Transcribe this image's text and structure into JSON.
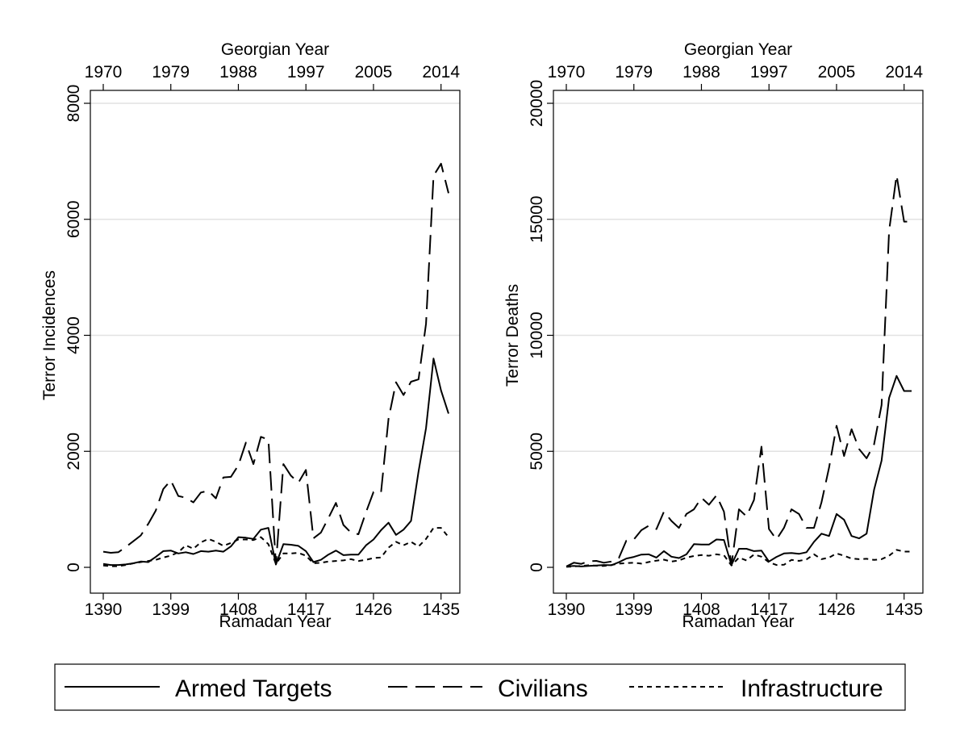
{
  "chart_data": [
    {
      "type": "line",
      "ylabel": "Terror Incidences",
      "xlabel": "Ramadan Year",
      "top_xlabel": "Georgian Year",
      "xlim": [
        1390,
        1436
      ],
      "ylim": [
        0,
        8000
      ],
      "x_ticks": [
        1390,
        1399,
        1408,
        1417,
        1426,
        1435
      ],
      "top_ticks": [
        {
          "at": 1390,
          "label": "1970"
        },
        {
          "at": 1399,
          "label": "1979"
        },
        {
          "at": 1408,
          "label": "1988"
        },
        {
          "at": 1417,
          "label": "1997"
        },
        {
          "at": 1426,
          "label": "2005"
        },
        {
          "at": 1435,
          "label": "2014"
        }
      ],
      "y_ticks": [
        0,
        2000,
        4000,
        6000,
        8000
      ],
      "gridlines": true,
      "series": [
        {
          "name": "Armed Targets",
          "style": "solid",
          "x": [
            1390,
            1391,
            1392,
            1393,
            1394,
            1395,
            1396,
            1397,
            1398,
            1399,
            1400,
            1401,
            1402,
            1403,
            1404,
            1405,
            1406,
            1407,
            1408,
            1409,
            1410,
            1411,
            1412,
            1413,
            1414,
            1415,
            1416,
            1417,
            1418,
            1419,
            1420,
            1421,
            1422,
            1423,
            1424,
            1425,
            1426,
            1427,
            1428,
            1429,
            1430,
            1431,
            1432,
            1433,
            1434,
            1435,
            1436
          ],
          "values": [
            60,
            40,
            40,
            50,
            70,
            100,
            90,
            180,
            280,
            290,
            240,
            260,
            230,
            280,
            270,
            290,
            270,
            360,
            520,
            510,
            490,
            650,
            680,
            50,
            400,
            390,
            370,
            280,
            90,
            130,
            220,
            290,
            210,
            220,
            220,
            380,
            480,
            640,
            770,
            560,
            650,
            800,
            1650,
            2400,
            3600,
            3050,
            2650
          ]
        },
        {
          "name": "Civilians",
          "style": "dashed",
          "x": [
            1390,
            1391,
            1392,
            1393,
            1394,
            1395,
            1396,
            1397,
            1398,
            1399,
            1400,
            1401,
            1402,
            1403,
            1404,
            1405,
            1406,
            1407,
            1408,
            1409,
            1410,
            1411,
            1412,
            1413,
            1414,
            1415,
            1416,
            1417,
            1418,
            1419,
            1420,
            1421,
            1422,
            1423,
            1424,
            1425,
            1426,
            1427,
            1428,
            1429,
            1430,
            1431,
            1432,
            1433,
            1434,
            1435,
            1436
          ],
          "values": [
            270,
            250,
            260,
            350,
            450,
            550,
            750,
            980,
            1350,
            1500,
            1230,
            1200,
            1120,
            1290,
            1320,
            1190,
            1550,
            1560,
            1760,
            2150,
            1780,
            2250,
            2200,
            50,
            1780,
            1580,
            1460,
            1680,
            500,
            600,
            850,
            1110,
            730,
            600,
            570,
            950,
            1300,
            1290,
            2560,
            3190,
            2970,
            3200,
            3240,
            4200,
            6750,
            6960,
            6450
          ]
        },
        {
          "name": "Infrastructure",
          "style": "dotted",
          "x": [
            1390,
            1391,
            1392,
            1393,
            1394,
            1395,
            1396,
            1397,
            1398,
            1399,
            1400,
            1401,
            1402,
            1403,
            1404,
            1405,
            1406,
            1407,
            1408,
            1409,
            1410,
            1411,
            1412,
            1413,
            1414,
            1415,
            1416,
            1417,
            1418,
            1419,
            1420,
            1421,
            1422,
            1423,
            1424,
            1425,
            1426,
            1427,
            1428,
            1429,
            1430,
            1431,
            1432,
            1433,
            1434,
            1435,
            1436
          ],
          "values": [
            30,
            20,
            20,
            40,
            70,
            90,
            110,
            130,
            170,
            200,
            260,
            380,
            320,
            430,
            490,
            440,
            370,
            420,
            480,
            480,
            470,
            520,
            400,
            60,
            240,
            240,
            250,
            200,
            70,
            80,
            100,
            110,
            120,
            140,
            110,
            130,
            160,
            170,
            340,
            440,
            380,
            440,
            360,
            490,
            680,
            680,
            520
          ]
        }
      ]
    },
    {
      "type": "line",
      "ylabel": "Terror Deaths",
      "xlabel": "Ramadan Year",
      "top_xlabel": "Georgian Year",
      "xlim": [
        1390,
        1436
      ],
      "ylim": [
        0,
        20000
      ],
      "x_ticks": [
        1390,
        1399,
        1408,
        1417,
        1426,
        1435
      ],
      "top_ticks": [
        {
          "at": 1390,
          "label": "1970"
        },
        {
          "at": 1399,
          "label": "1979"
        },
        {
          "at": 1408,
          "label": "1988"
        },
        {
          "at": 1417,
          "label": "1997"
        },
        {
          "at": 1426,
          "label": "2005"
        },
        {
          "at": 1435,
          "label": "2014"
        }
      ],
      "y_ticks": [
        0,
        5000,
        10000,
        15000,
        20000
      ],
      "gridlines": true,
      "series": [
        {
          "name": "Armed Targets",
          "style": "solid",
          "x": [
            1390,
            1391,
            1392,
            1393,
            1394,
            1395,
            1396,
            1397,
            1398,
            1399,
            1400,
            1401,
            1402,
            1403,
            1404,
            1405,
            1406,
            1407,
            1408,
            1409,
            1410,
            1411,
            1412,
            1413,
            1414,
            1415,
            1416,
            1417,
            1418,
            1419,
            1420,
            1421,
            1422,
            1423,
            1424,
            1425,
            1426,
            1427,
            1428,
            1429,
            1430,
            1431,
            1432,
            1433,
            1434,
            1435,
            1436
          ],
          "values": [
            40,
            60,
            40,
            60,
            80,
            100,
            90,
            220,
            380,
            450,
            550,
            560,
            420,
            700,
            460,
            400,
            560,
            1000,
            980,
            980,
            1200,
            1180,
            100,
            800,
            800,
            700,
            720,
            250,
            450,
            600,
            620,
            580,
            650,
            1100,
            1450,
            1350,
            2300,
            2050,
            1350,
            1250,
            1450,
            3350,
            4600,
            7300,
            8250,
            7600,
            7600
          ]
        },
        {
          "name": "Civilians",
          "style": "dashed",
          "x": [
            1390,
            1391,
            1392,
            1393,
            1394,
            1395,
            1396,
            1397,
            1398,
            1399,
            1400,
            1401,
            1402,
            1403,
            1404,
            1405,
            1406,
            1407,
            1408,
            1409,
            1410,
            1411,
            1412,
            1413,
            1414,
            1415,
            1416,
            1417,
            1418,
            1419,
            1420,
            1421,
            1422,
            1423,
            1424,
            1425,
            1426,
            1427,
            1428,
            1429,
            1430,
            1431,
            1432,
            1433,
            1434,
            1435,
            1436
          ],
          "values": [
            40,
            200,
            150,
            260,
            280,
            200,
            250,
            400,
            1150,
            1200,
            1600,
            1800,
            1650,
            2400,
            2000,
            1700,
            2300,
            2500,
            3000,
            2700,
            3100,
            2400,
            100,
            2500,
            2200,
            2900,
            5200,
            1650,
            1200,
            1700,
            2500,
            2300,
            1700,
            1700,
            2800,
            4300,
            6100,
            4800,
            5950,
            5100,
            4700,
            5300,
            7000,
            14500,
            16900,
            14900,
            14900
          ]
        },
        {
          "name": "Infrastructure",
          "style": "dotted",
          "x": [
            1390,
            1391,
            1392,
            1393,
            1394,
            1395,
            1396,
            1397,
            1398,
            1399,
            1400,
            1401,
            1402,
            1403,
            1404,
            1405,
            1406,
            1407,
            1408,
            1409,
            1410,
            1411,
            1412,
            1413,
            1414,
            1415,
            1416,
            1417,
            1418,
            1419,
            1420,
            1421,
            1422,
            1423,
            1424,
            1425,
            1426,
            1427,
            1428,
            1429,
            1430,
            1431,
            1432,
            1433,
            1434,
            1435,
            1436
          ],
          "values": [
            20,
            40,
            60,
            90,
            70,
            60,
            100,
            160,
            180,
            200,
            160,
            230,
            290,
            330,
            250,
            300,
            420,
            490,
            530,
            500,
            560,
            520,
            80,
            420,
            300,
            550,
            460,
            220,
            100,
            110,
            320,
            280,
            340,
            560,
            350,
            420,
            600,
            500,
            380,
            350,
            370,
            320,
            350,
            500,
            750,
            680,
            680
          ]
        }
      ]
    }
  ],
  "legend": {
    "items": [
      {
        "name": "Armed Targets",
        "style": "solid"
      },
      {
        "name": "Civilians",
        "style": "dashed"
      },
      {
        "name": "Infrastructure",
        "style": "dotted"
      }
    ]
  }
}
